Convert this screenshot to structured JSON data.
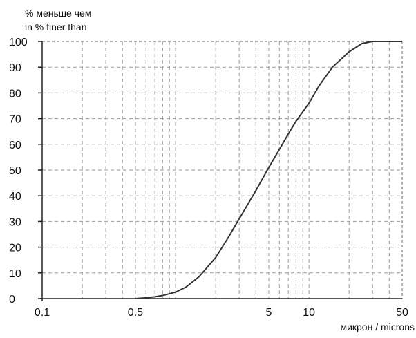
{
  "chart_data": {
    "type": "line",
    "ylabel_lines": [
      "% меньше чем",
      "in % finer than"
    ],
    "xlabel": "микрон / microns",
    "x_scale": "log",
    "xlim": [
      0.1,
      50
    ],
    "ylim": [
      0,
      100
    ],
    "y_ticks": [
      0,
      10,
      20,
      30,
      40,
      50,
      60,
      70,
      80,
      90,
      100
    ],
    "x_tick_labels": [
      {
        "value": 0.1,
        "label": "0.1"
      },
      {
        "value": 0.5,
        "label": "0.5"
      },
      {
        "value": 5,
        "label": "5"
      },
      {
        "value": 10,
        "label": "10"
      },
      {
        "value": 50,
        "label": "50"
      }
    ],
    "grid": true,
    "series": [
      {
        "color": "#333333",
        "points": [
          [
            0.5,
            0
          ],
          [
            0.6,
            0.3
          ],
          [
            0.7,
            0.7
          ],
          [
            0.8,
            1.2
          ],
          [
            1.0,
            2.5
          ],
          [
            1.2,
            4.5
          ],
          [
            1.5,
            8.5
          ],
          [
            2.0,
            16
          ],
          [
            2.5,
            24
          ],
          [
            3.0,
            31
          ],
          [
            4.0,
            42
          ],
          [
            5.0,
            51
          ],
          [
            6.0,
            58
          ],
          [
            7.0,
            64
          ],
          [
            8.0,
            69
          ],
          [
            10.0,
            76
          ],
          [
            12.0,
            83
          ],
          [
            15.0,
            90
          ],
          [
            20.0,
            96
          ],
          [
            25.0,
            99.2
          ],
          [
            30.0,
            100
          ],
          [
            50.0,
            100
          ]
        ]
      }
    ]
  }
}
